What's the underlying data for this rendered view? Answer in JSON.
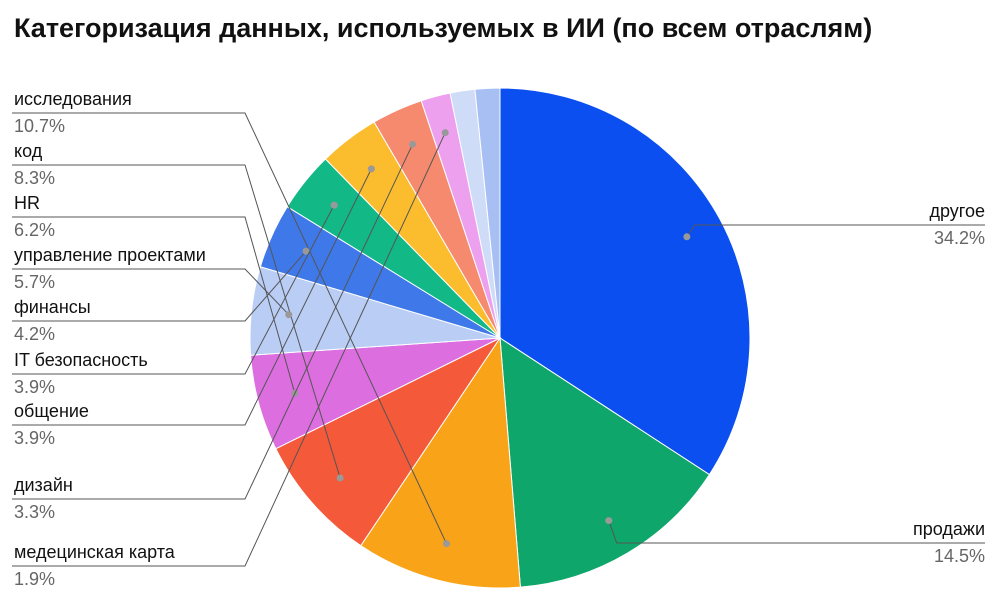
{
  "chart_data": {
    "type": "pie",
    "title": "Категоризация данных, используемых в ИИ (по всем отраслям)",
    "categories": [
      "другое",
      "продажи",
      "исследования",
      "код",
      "HR",
      "управление проектами",
      "финансы",
      "IT безопасность",
      "общение",
      "дизайн",
      "медецинская карта",
      null,
      null
    ],
    "values": [
      34.2,
      14.5,
      10.7,
      8.3,
      6.2,
      5.7,
      4.2,
      3.9,
      3.9,
      3.3,
      1.9,
      1.6,
      1.6
    ],
    "value_labels": [
      "34.2%",
      "14.5%",
      "10.7%",
      "8.3%",
      "6.2%",
      "5.7%",
      "4.2%",
      "3.9%",
      "3.9%",
      "3.3%",
      "1.9%",
      null,
      null
    ],
    "colors": [
      "#0b4ff0",
      "#0ea66a",
      "#f9a418",
      "#f4593a",
      "#dc6ee0",
      "#b9cdf5",
      "#3f78e8",
      "#12b886",
      "#fbbc2e",
      "#f58a6e",
      "#eda0ee",
      "#cfdcf8",
      "#a7bff2"
    ]
  }
}
